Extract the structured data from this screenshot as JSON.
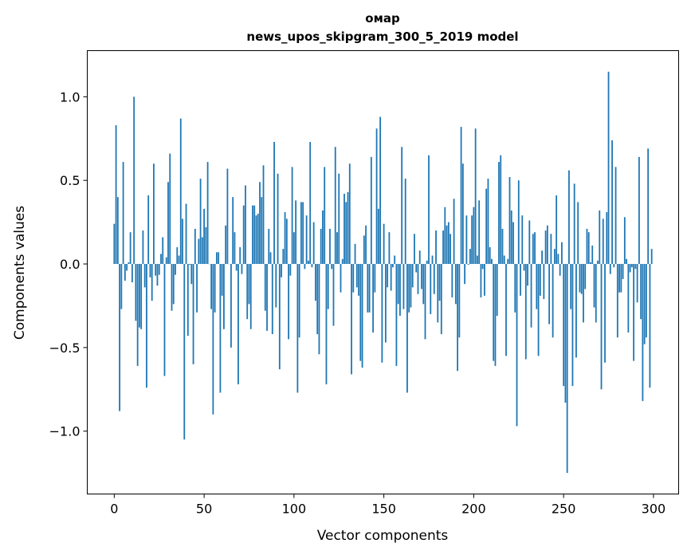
{
  "chart_data": {
    "type": "bar",
    "title": [
      "омар",
      "news_upos_skipgram_300_5_2019 model"
    ],
    "xlabel": "Vector components",
    "ylabel": "Components values",
    "xlim": [
      -15,
      314
    ],
    "ylim": [
      -1.376,
      1.276
    ],
    "xticks": [
      0,
      50,
      100,
      150,
      200,
      250,
      300
    ],
    "xtick_labels": [
      "0",
      "50",
      "100",
      "150",
      "200",
      "250",
      "300"
    ],
    "yticks": [
      -1.0,
      -0.5,
      0.0,
      0.5,
      1.0
    ],
    "ytick_labels": [
      "−1.0",
      "−0.5",
      "0.0",
      "0.5",
      "1.0"
    ],
    "grid": false,
    "bar_color": "#1f77b4",
    "values": [
      0.24,
      0.83,
      0.4,
      -0.88,
      -0.27,
      0.61,
      -0.1,
      -0.04,
      0.01,
      0.19,
      -0.11,
      1.0,
      -0.34,
      -0.61,
      -0.38,
      -0.39,
      0.2,
      -0.14,
      -0.74,
      0.41,
      -0.08,
      -0.22,
      0.6,
      -0.07,
      -0.13,
      -0.065,
      0.06,
      0.16,
      -0.67,
      0.04,
      0.49,
      0.66,
      -0.28,
      -0.24,
      -0.065,
      0.1,
      0.05,
      0.87,
      0.27,
      -1.05,
      0.36,
      -0.43,
      -0.005,
      -0.12,
      -0.6,
      0.21,
      -0.29,
      0.15,
      0.51,
      0.16,
      0.33,
      0.22,
      0.61,
      0.0,
      -0.27,
      -0.9,
      -0.29,
      0.07,
      0.07,
      -0.77,
      -0.19,
      -0.39,
      0.23,
      0.57,
      0.0,
      -0.5,
      0.4,
      0.19,
      -0.04,
      -0.72,
      0.1,
      -0.06,
      0.35,
      0.47,
      -0.33,
      -0.24,
      -0.39,
      0.35,
      0.35,
      0.29,
      0.3,
      0.49,
      0.4,
      0.59,
      -0.28,
      -0.4,
      0.21,
      0.07,
      -0.42,
      0.73,
      -0.26,
      0.54,
      -0.63,
      -0.08,
      0.09,
      0.31,
      0.27,
      -0.45,
      -0.07,
      0.58,
      0.19,
      0.38,
      -0.77,
      -0.44,
      0.37,
      0.37,
      -0.03,
      0.29,
      0.02,
      0.73,
      -0.02,
      0.25,
      -0.22,
      -0.42,
      -0.54,
      0.21,
      0.32,
      0.58,
      -0.72,
      -0.27,
      0.21,
      -0.03,
      -0.37,
      0.7,
      0.19,
      0.54,
      -0.17,
      0.03,
      0.42,
      0.37,
      0.43,
      0.6,
      -0.66,
      -0.17,
      0.12,
      -0.14,
      -0.19,
      -0.58,
      -0.62,
      0.17,
      0.23,
      -0.29,
      -0.29,
      0.64,
      -0.41,
      -0.17,
      0.81,
      0.33,
      0.88,
      -0.59,
      0.24,
      -0.47,
      -0.14,
      0.19,
      -0.16,
      -0.02,
      0.05,
      -0.61,
      -0.24,
      -0.31,
      0.7,
      -0.27,
      0.51,
      -0.77,
      -0.29,
      -0.26,
      -0.14,
      0.18,
      -0.05,
      -0.18,
      0.08,
      -0.15,
      -0.24,
      -0.45,
      0.02,
      0.65,
      -0.3,
      0.05,
      -0.18,
      0.2,
      -0.35,
      -0.22,
      -0.42,
      0.2,
      0.34,
      0.23,
      0.25,
      0.18,
      -0.2,
      0.39,
      -0.24,
      -0.64,
      -0.44,
      0.82,
      0.6,
      -0.12,
      0.29,
      -0.005,
      0.09,
      0.29,
      0.34,
      0.81,
      0.05,
      0.38,
      -0.2,
      -0.03,
      -0.19,
      0.45,
      0.51,
      0.1,
      0.03,
      -0.58,
      -0.61,
      -0.31,
      0.61,
      0.65,
      0.21,
      0.05,
      -0.55,
      0.03,
      0.52,
      0.32,
      0.25,
      -0.29,
      -0.97,
      0.5,
      -0.19,
      0.29,
      -0.04,
      -0.57,
      -0.13,
      0.26,
      -0.38,
      0.18,
      0.19,
      -0.27,
      -0.55,
      -0.19,
      0.08,
      -0.21,
      0.2,
      0.23,
      -0.36,
      0.18,
      -0.44,
      0.09,
      0.41,
      0.06,
      -0.07,
      0.13,
      -0.73,
      -0.83,
      -1.25,
      0.56,
      -0.27,
      -0.73,
      0.48,
      -0.56,
      0.37,
      -0.17,
      -0.18,
      -0.35,
      -0.15,
      0.21,
      0.19,
      0.01,
      0.11,
      -0.26,
      -0.35,
      0.02,
      0.32,
      -0.75,
      0.27,
      -0.59,
      0.31,
      1.15,
      -0.06,
      0.74,
      -0.02,
      0.58,
      -0.44,
      -0.17,
      -0.17,
      -0.09,
      0.28,
      0.03,
      -0.41,
      -0.05,
      -0.02,
      -0.58,
      -0.03,
      -0.23,
      0.64,
      -0.33,
      -0.82,
      -0.48,
      -0.44,
      0.69,
      -0.74,
      0.09
    ]
  }
}
